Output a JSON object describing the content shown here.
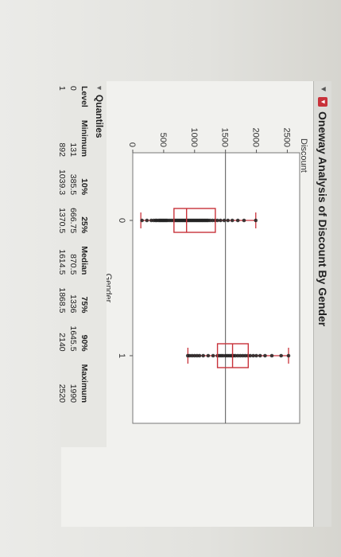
{
  "report": {
    "title": "Oneway Analysis of Discount By Gender",
    "disclosure_icon": "triangle-down-icon",
    "menu_icon": "red-triangle-menu-icon"
  },
  "chart_data": {
    "type": "scatter",
    "ylabel": "Discount",
    "xlabel": "Gender",
    "categories": [
      "0",
      "1"
    ],
    "yticks": [
      0,
      500,
      1000,
      1500,
      2000,
      2500
    ],
    "ylim": [
      0,
      2700
    ],
    "grand_mean_line": 1500,
    "series": [
      {
        "values": [
          150,
          230,
          300,
          340,
          370,
          390,
          420,
          440,
          460,
          480,
          500,
          520,
          540,
          560,
          590,
          620,
          650,
          680,
          700,
          720,
          740,
          760,
          780,
          800,
          820,
          840,
          860,
          880,
          900,
          920,
          940,
          960,
          980,
          1000,
          1020,
          1040,
          1060,
          1080,
          1100,
          1120,
          1140,
          1160,
          1180,
          1200,
          1220,
          1250,
          1290,
          1330,
          1370,
          1420,
          1480,
          1540,
          1610,
          1700,
          1800,
          1990
        ],
        "box": {
          "min": 131,
          "q1": 666.75,
          "median": 870.5,
          "q3": 1336,
          "max": 1990
        }
      },
      {
        "values": [
          890,
          920,
          960,
          1000,
          1040,
          1080,
          1140,
          1220,
          1300,
          1370,
          1400,
          1430,
          1460,
          1500,
          1530,
          1560,
          1590,
          1610,
          1630,
          1660,
          1700,
          1740,
          1780,
          1820,
          1860,
          1900,
          1950,
          2000,
          2060,
          2140,
          2250,
          2400,
          2520
        ],
        "box": {
          "min": 892,
          "q1": 1370.5,
          "median": 1614.5,
          "q3": 1868.5,
          "max": 2520
        }
      }
    ]
  },
  "quantiles": {
    "heading": "Quantiles",
    "columns": [
      "Level",
      "Minimum",
      "10%",
      "25%",
      "Median",
      "75%",
      "90%",
      "Maximum"
    ],
    "rows": [
      [
        "0",
        "131",
        "385.5",
        "666.75",
        "870.5",
        "1336",
        "1645.5",
        "1990"
      ],
      [
        "1",
        "892",
        "1039.3",
        "1370.5",
        "1614.5",
        "1868.5",
        "2140",
        "2520"
      ]
    ]
  },
  "colors": {
    "box_outline": "#c8323a",
    "points": "#222222",
    "mean_line": "#555555"
  }
}
